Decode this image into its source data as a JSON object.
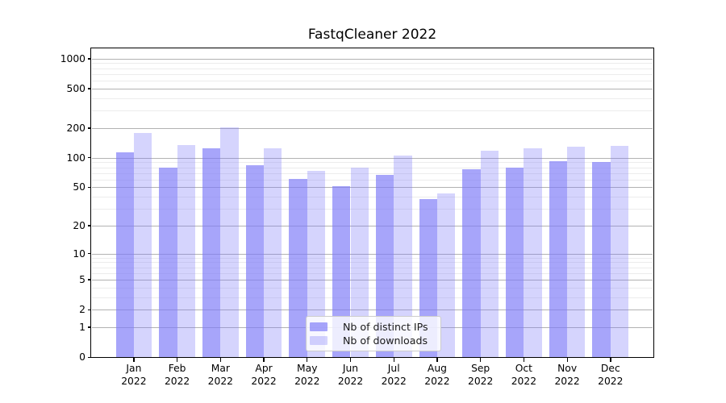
{
  "chart_data": {
    "type": "bar",
    "title": "FastqCleaner 2022",
    "categories": [
      {
        "label": "Jan",
        "sublabel": "2022"
      },
      {
        "label": "Feb",
        "sublabel": "2022"
      },
      {
        "label": "Mar",
        "sublabel": "2022"
      },
      {
        "label": "Apr",
        "sublabel": "2022"
      },
      {
        "label": "May",
        "sublabel": "2022"
      },
      {
        "label": "Jun",
        "sublabel": "2022"
      },
      {
        "label": "Jul",
        "sublabel": "2022"
      },
      {
        "label": "Aug",
        "sublabel": "2022"
      },
      {
        "label": "Sep",
        "sublabel": "2022"
      },
      {
        "label": "Oct",
        "sublabel": "2022"
      },
      {
        "label": "Nov",
        "sublabel": "2022"
      },
      {
        "label": "Dec",
        "sublabel": "2022"
      }
    ],
    "series": [
      {
        "name": "Nb of distinct IPs",
        "color": "rgba(124,121,248,0.67)",
        "values": [
          113,
          80,
          125,
          84,
          61,
          51,
          67,
          38,
          77,
          80,
          93,
          90
        ]
      },
      {
        "name": "Nb of downloads",
        "color": "rgba(124,121,248,0.32)",
        "values": [
          178,
          134,
          205,
          125,
          73,
          80,
          105,
          43,
          117,
          124,
          130,
          133
        ]
      }
    ],
    "y_axis": {
      "scale": "log1p",
      "ylim": [
        0,
        1270
      ],
      "ticks": [
        0,
        1,
        2,
        5,
        10,
        20,
        50,
        100,
        200,
        500,
        1000
      ],
      "minor_gridlines": [
        3,
        4,
        6,
        7,
        8,
        9,
        30,
        40,
        60,
        70,
        80,
        90,
        300,
        400,
        600,
        700,
        800,
        900
      ]
    },
    "legend": {
      "position": "lower center"
    },
    "grid": {
      "major_color": "#b2b2b2",
      "minor_color": "#ececec"
    },
    "axis_color": "#000000",
    "background": "#ffffff"
  }
}
